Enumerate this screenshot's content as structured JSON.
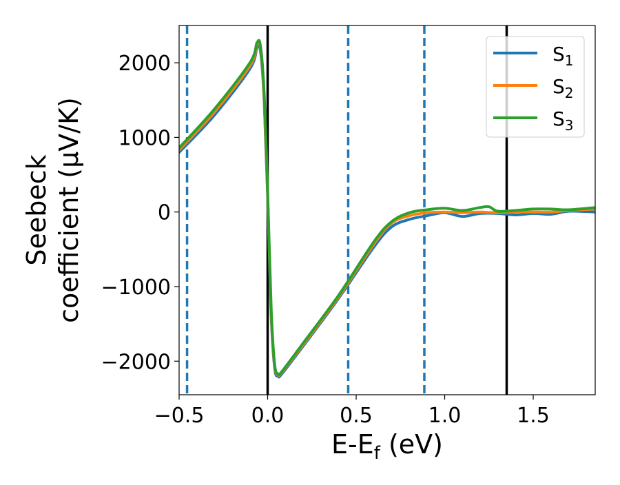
{
  "chart_data": {
    "type": "line",
    "xlabel": "E-E",
    "xlabel_sub": "f",
    "xlabel_unit": " (eV)",
    "ylabel_line1": "Seebeck",
    "ylabel_line2": "coefficient  (μV/K)",
    "xlim": [
      -0.5,
      1.85
    ],
    "ylim": [
      -2450,
      2500
    ],
    "xticks": [
      -0.5,
      0.0,
      0.5,
      1.0,
      1.5
    ],
    "xtick_labels": [
      "−0.5",
      "0.0",
      "0.5",
      "1.0",
      "1.5"
    ],
    "yticks": [
      -2000,
      -1000,
      0,
      1000,
      2000
    ],
    "ytick_labels": [
      "−2000",
      "−1000",
      "0",
      "1000",
      "2000"
    ],
    "grid": false,
    "legend_position": "top-right",
    "vlines": [
      {
        "x": -0.455,
        "style": "dashed",
        "color": "#1f77b4"
      },
      {
        "x": 0.0,
        "style": "solid",
        "color": "#000000"
      },
      {
        "x": 0.455,
        "style": "dashed",
        "color": "#1f77b4"
      },
      {
        "x": 0.885,
        "style": "dashed",
        "color": "#1f77b4"
      },
      {
        "x": 1.35,
        "style": "solid",
        "color": "#000000"
      }
    ],
    "series": [
      {
        "name": "S",
        "sub": "1",
        "color": "#1f77b4",
        "x": [
          -0.5,
          -0.3,
          -0.1,
          -0.06,
          -0.04,
          -0.02,
          0.0,
          0.02,
          0.04,
          0.06,
          0.08,
          0.2,
          0.4,
          0.6,
          0.7,
          0.8,
          0.9,
          1.0,
          1.1,
          1.2,
          1.3,
          1.4,
          1.5,
          1.6,
          1.7,
          1.85
        ],
        "y": [
          800,
          1300,
          1920,
          2200,
          2150,
          1500,
          200,
          -1400,
          -2100,
          -2200,
          -2170,
          -1800,
          -1160,
          -470,
          -200,
          -100,
          -50,
          -10,
          -60,
          -20,
          -20,
          -40,
          -20,
          -30,
          10,
          0
        ]
      },
      {
        "name": "S",
        "sub": "2",
        "color": "#ff7f0e",
        "x": [
          -0.5,
          -0.3,
          -0.1,
          -0.06,
          -0.04,
          -0.02,
          0.0,
          0.02,
          0.04,
          0.06,
          0.08,
          0.2,
          0.4,
          0.6,
          0.7,
          0.8,
          0.9,
          1.0,
          1.1,
          1.2,
          1.3,
          1.4,
          1.5,
          1.6,
          1.7,
          1.85
        ],
        "y": [
          830,
          1340,
          1960,
          2240,
          2200,
          1550,
          250,
          -1350,
          -2070,
          -2180,
          -2150,
          -1780,
          -1140,
          -430,
          -150,
          -50,
          -10,
          0,
          -10,
          0,
          -10,
          0,
          0,
          0,
          20,
          40
        ]
      },
      {
        "name": "S",
        "sub": "3",
        "color": "#2ca02c",
        "x": [
          -0.5,
          -0.3,
          -0.1,
          -0.06,
          -0.04,
          -0.02,
          0.0,
          0.02,
          0.04,
          0.06,
          0.08,
          0.2,
          0.4,
          0.6,
          0.7,
          0.8,
          0.9,
          1.0,
          1.1,
          1.2,
          1.25,
          1.3,
          1.4,
          1.5,
          1.6,
          1.7,
          1.85
        ],
        "y": [
          860,
          1380,
          2000,
          2270,
          2220,
          1600,
          300,
          -1300,
          -2050,
          -2170,
          -2140,
          -1760,
          -1120,
          -400,
          -130,
          -10,
          30,
          50,
          20,
          60,
          70,
          10,
          20,
          40,
          40,
          30,
          60
        ]
      }
    ]
  }
}
